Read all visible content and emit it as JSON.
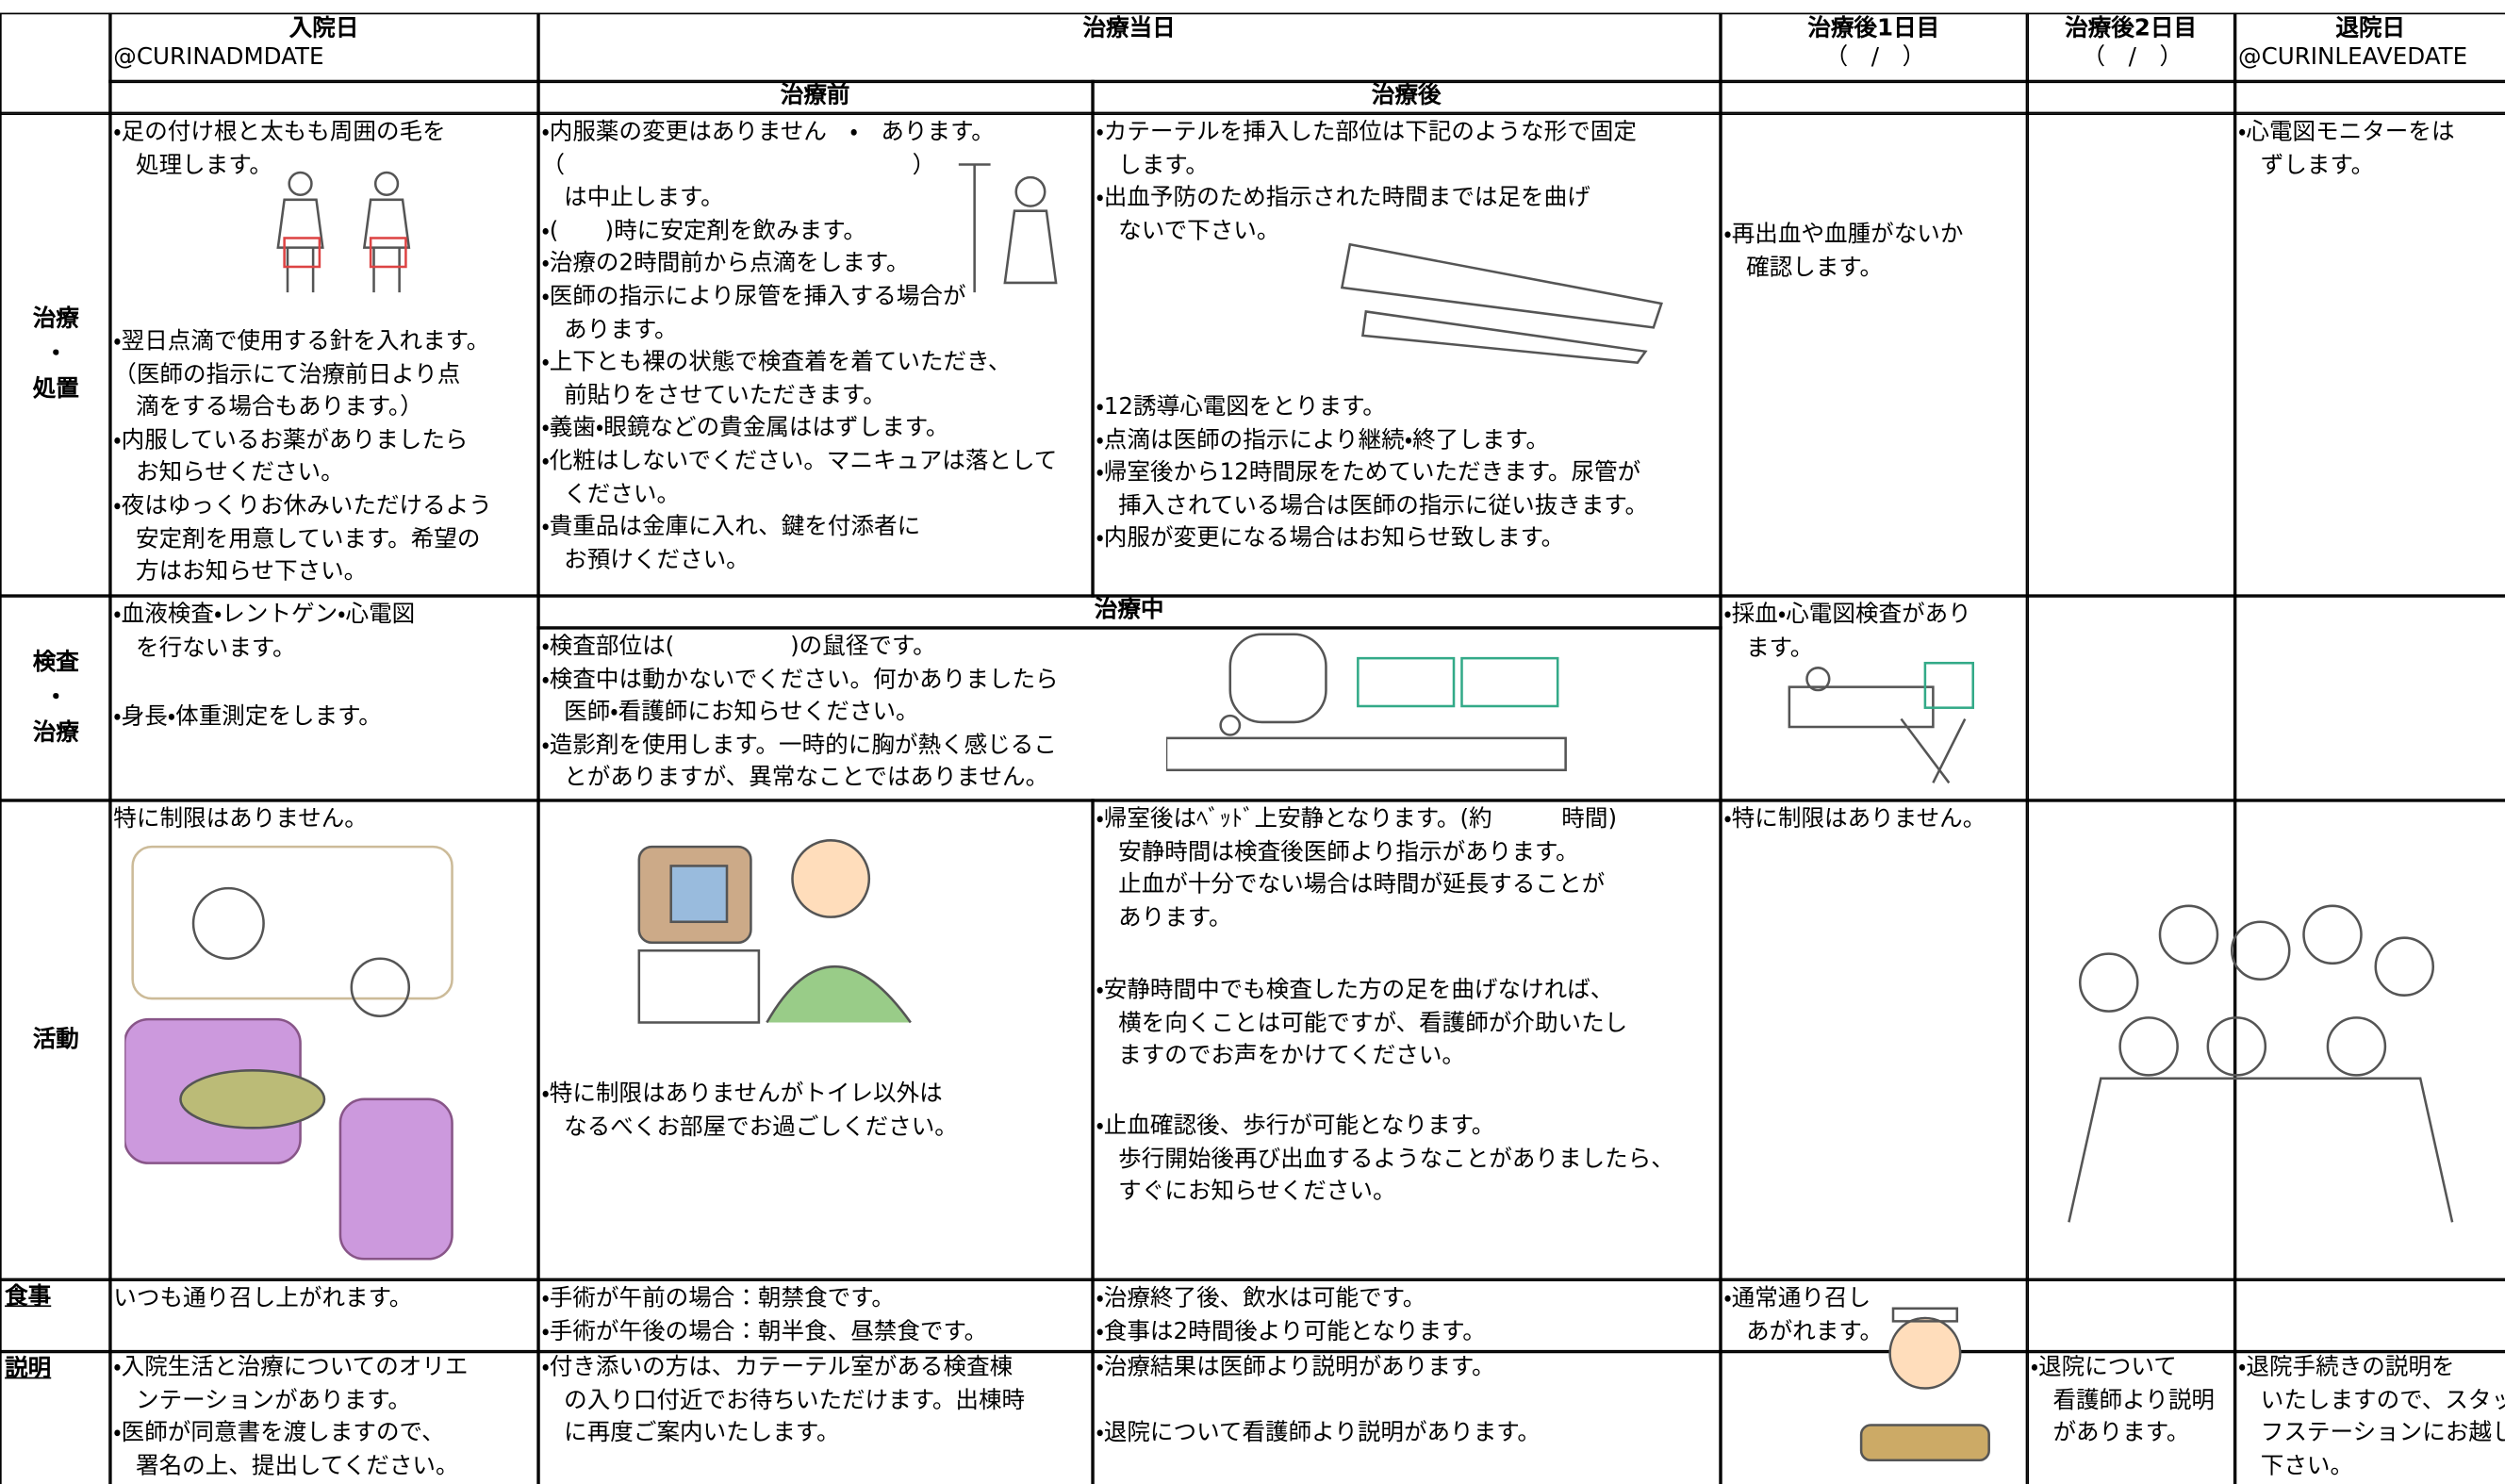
{
  "header": {
    "admission": {
      "title": "入院日",
      "sub": "@CURINADMDATE"
    },
    "treatment_day": "治療当日",
    "day1": {
      "title": "治療後1日目",
      "sub": "（　/　）"
    },
    "day2": {
      "title": "治療後2日目",
      "sub": "（　/　）"
    },
    "discharge": {
      "title": "退院日",
      "sub": "@CURINLEAVEDATE"
    },
    "before": "治療前",
    "after": "治療後"
  },
  "rows": [
    {
      "label": [
        "治療",
        "・",
        "処置"
      ],
      "cells": [
        {
          "paragraphs": [
            [
              "・足の付け根と太もも周囲の毛を",
              "処理します。"
            ],
            [
              "・翌日点滴で使用する針を入れます。",
              "（医師の指示にて治療前日より点",
              "滴をする場合もあります。）",
              "・内服しているお薬がありましたら",
              "お知らせください。",
              "・夜はゆっくりお休みいただけるよう",
              "安定剤を用意しています。希望の",
              "方はお知らせ下さい。"
            ]
          ]
        },
        {
          "paragraphs": [
            [
              "・内服薬の変更はありません　・　あります。",
              "（　　　　　　　　　　　　　　　）",
              "は中止します。",
              "・(　　)時に安定剤を飲みます。",
              "・治療の2時間前から点滴をします。",
              "・医師の指示により尿管を挿入する場合が",
              "あります。",
              "・上下とも裸の状態で検査着を着ていただき、",
              "前貼りをさせていただきます。",
              "・義歯・眼鏡などの貴金属ははずします。",
              "・化粧はしないでください。マニキュアは落として",
              "ください。",
              "・貴重品は金庫に入れ、鍵を付添者に",
              "お預けください。"
            ]
          ]
        },
        {
          "paragraphs": [
            [
              "・カテーテルを挿入した部位は下記のような形で固定",
              "します。",
              "・出血予防のため指示された時間までは足を曲げ",
              "ないで下さい。"
            ],
            [
              "・12誘導心電図をとります。",
              "・点滴は医師の指示により継続・終了します。",
              "・帰室後から12時間尿をためていただきます。尿管が",
              "挿入されている場合は医師の指示に従い抜きます。",
              "・内服が変更になる場合はお知らせ致します。"
            ]
          ]
        },
        {
          "paragraphs": [
            [
              "・再出血や血腫がないか",
              "確認します。"
            ]
          ]
        },
        {
          "paragraphs": []
        },
        {
          "paragraphs": [
            [
              "・心電図モニターをは",
              "ずします。"
            ]
          ]
        }
      ]
    },
    {
      "label": [
        "検査",
        "・",
        "治療"
      ],
      "subheader": "治療中",
      "cells": [
        {
          "paragraphs": [
            [
              "・血液検査・レントゲン・心電図",
              "を行ないます。"
            ],
            [
              "・身長・体重測定をします。"
            ]
          ]
        },
        {
          "paragraphs": [
            [
              "・検査部位は(　　　　　)の鼠径です。",
              "・検査中は動かないでください。何かありましたら",
              "医師・看護師にお知らせください。",
              "・造影剤を使用します。一時的に胸が熱く感じるこ",
              "とがありますが、異常なことではありません。"
            ]
          ]
        },
        {
          "paragraphs": [
            [
              "・採血・心電図検査があり",
              "ます。"
            ]
          ]
        },
        {
          "paragraphs": []
        },
        {
          "paragraphs": []
        }
      ]
    },
    {
      "label": [
        "活動"
      ],
      "cells": [
        {
          "paragraphs": [
            [
              "特に制限はありません。"
            ]
          ]
        },
        {
          "paragraphs": [
            [
              "・特に制限はありませんがトイレ以外は",
              "なるべくお部屋でお過ごしください。"
            ]
          ]
        },
        {
          "paragraphs": [
            [
              "・帰室後はﾍﾞｯﾄﾞ上安静となります。(約　　　時間)",
              "安静時間は検査後医師より指示があります。",
              "止血が十分でない場合は時間が延長することが",
              "あります。"
            ],
            [
              "・安静時間中でも検査した方の足を曲げなければ、",
              "横を向くことは可能ですが、看護師が介助いたし",
              "ますのでお声をかけてください。"
            ],
            [
              "・止血確認後、歩行が可能となります。",
              "歩行開始後再び出血するようなことがありましたら、",
              "すぐにお知らせください。"
            ]
          ]
        },
        {
          "paragraphs": [
            [
              "・特に制限はありません。"
            ]
          ]
        },
        {
          "paragraphs": []
        },
        {
          "paragraphs": []
        }
      ]
    },
    {
      "label": [
        "食事"
      ],
      "cells": [
        {
          "paragraphs": [
            [
              "いつも通り召し上がれます。"
            ]
          ]
        },
        {
          "paragraphs": [
            [
              "・手術が午前の場合：朝禁食です。",
              "・手術が午後の場合：朝半食、昼禁食です。"
            ]
          ]
        },
        {
          "paragraphs": [
            [
              "・治療終了後、飲水は可能です。",
              "・食事は2時間後より可能となります。"
            ]
          ]
        },
        {
          "paragraphs": [
            [
              "・通常通り召し",
              "あがれます。"
            ]
          ]
        },
        {
          "paragraphs": []
        },
        {
          "paragraphs": []
        }
      ]
    },
    {
      "label": [
        "説明"
      ],
      "cells": [
        {
          "paragraphs": [
            [
              "・入院生活と治療についてのオリエ",
              "ンテーションがあります。",
              "・医師が同意書を渡しますので、",
              "署名の上、提出してください。"
            ]
          ]
        },
        {
          "paragraphs": [
            [
              "・付き添いの方は、カテーテル室がある検査棟",
              "の入り口付近でお待ちいただけます。出棟時",
              "に再度ご案内いたします。"
            ]
          ]
        },
        {
          "paragraphs": [
            [
              "・治療結果は医師より説明があります。"
            ],
            [
              "・退院について看護師より説明があります。"
            ]
          ]
        },
        {
          "paragraphs": []
        },
        {
          "paragraphs": [
            [
              "・退院について",
              "看護師より説明",
              "があります。"
            ]
          ]
        },
        {
          "paragraphs": [
            [
              "・退院手続きの説明を",
              "いたしますので、スタッ",
              "フステーションにお越し",
              "下さい。"
            ]
          ]
        }
      ]
    }
  ]
}
